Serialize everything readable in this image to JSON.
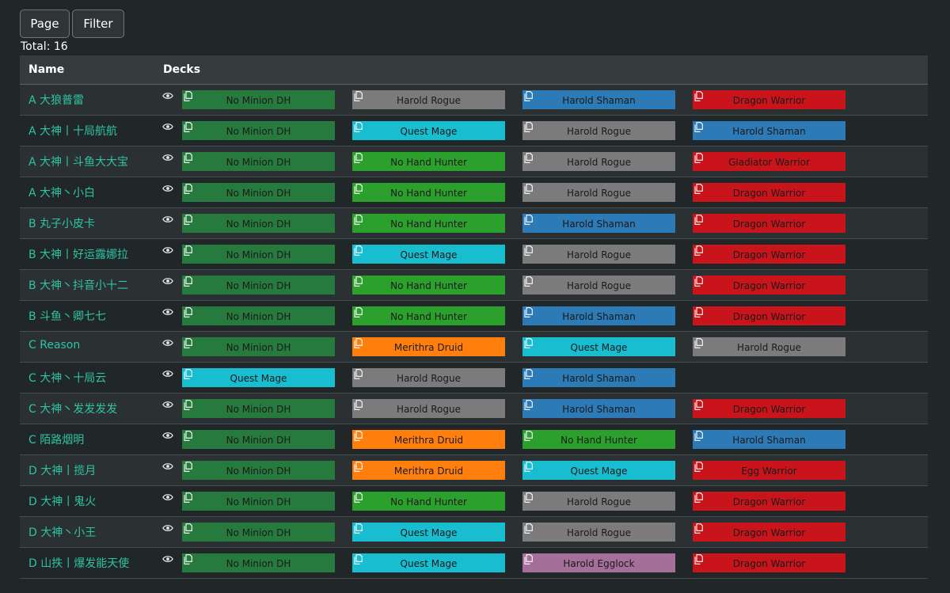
{
  "toolbar": {
    "page_label": "Page",
    "filter_label": "Filter"
  },
  "total": "Total: 16",
  "table": {
    "col_name": "Name",
    "col_decks": "Decks"
  },
  "colors": {
    "No Minion DH": "#267a3e",
    "Harold Rogue": "#7b7b7b",
    "Harold Shaman": "#2c7ab6",
    "Dragon Warrior": "#c8141a",
    "Quest Mage": "#18bdd0",
    "No Hand Hunter": "#2ca02c",
    "Gladiator Warrior": "#c8141a",
    "Merithra Druid": "#ff7f0e",
    "Egg Warrior": "#c8141a",
    "Harold Egglock": "#a4709a"
  },
  "icons": {
    "view": "eye-icon",
    "copy": "copy-icon"
  },
  "rows": [
    {
      "name": "A 大狼普雷",
      "decks": [
        "No Minion DH",
        "Harold Rogue",
        "Harold Shaman",
        "Dragon Warrior"
      ]
    },
    {
      "name": "A 大神丨十局航航",
      "decks": [
        "No Minion DH",
        "Quest Mage",
        "Harold Rogue",
        "Harold Shaman"
      ]
    },
    {
      "name": "A 大神丨斗鱼大大宝",
      "decks": [
        "No Minion DH",
        "No Hand Hunter",
        "Harold Rogue",
        "Gladiator Warrior"
      ]
    },
    {
      "name": "A 大神丶小白",
      "decks": [
        "No Minion DH",
        "No Hand Hunter",
        "Harold Rogue",
        "Dragon Warrior"
      ]
    },
    {
      "name": "B 丸子小皮卡",
      "decks": [
        "No Minion DH",
        "No Hand Hunter",
        "Harold Shaman",
        "Dragon Warrior"
      ]
    },
    {
      "name": "B 大神丨好运露娜拉",
      "decks": [
        "No Minion DH",
        "Quest Mage",
        "Harold Rogue",
        "Dragon Warrior"
      ]
    },
    {
      "name": "B 大神丶抖音小十二",
      "decks": [
        "No Minion DH",
        "No Hand Hunter",
        "Harold Rogue",
        "Dragon Warrior"
      ]
    },
    {
      "name": "B 斗鱼丶卿七七",
      "decks": [
        "No Minion DH",
        "No Hand Hunter",
        "Harold Shaman",
        "Dragon Warrior"
      ]
    },
    {
      "name": "C Reason",
      "decks": [
        "No Minion DH",
        "Merithra Druid",
        "Quest Mage",
        "Harold Rogue"
      ]
    },
    {
      "name": "C 大神丶十局云",
      "decks": [
        "Quest Mage",
        "Harold Rogue",
        "Harold Shaman"
      ]
    },
    {
      "name": "C 大神丶发发发发",
      "decks": [
        "No Minion DH",
        "Harold Rogue",
        "Harold Shaman",
        "Dragon Warrior"
      ]
    },
    {
      "name": "C 陌路烟明",
      "decks": [
        "No Minion DH",
        "Merithra Druid",
        "No Hand Hunter",
        "Harold Shaman"
      ]
    },
    {
      "name": "D 大神丨揽月",
      "decks": [
        "No Minion DH",
        "Merithra Druid",
        "Quest Mage",
        "Egg Warrior"
      ]
    },
    {
      "name": "D 大神丨鬼火",
      "decks": [
        "No Minion DH",
        "No Hand Hunter",
        "Harold Rogue",
        "Dragon Warrior"
      ]
    },
    {
      "name": "D 大神丶小王",
      "decks": [
        "No Minion DH",
        "Quest Mage",
        "Harold Rogue",
        "Dragon Warrior"
      ]
    },
    {
      "name": "D 山抶丨爆发能天使",
      "decks": [
        "No Minion DH",
        "Quest Mage",
        "Harold Egglock",
        "Dragon Warrior"
      ]
    }
  ]
}
